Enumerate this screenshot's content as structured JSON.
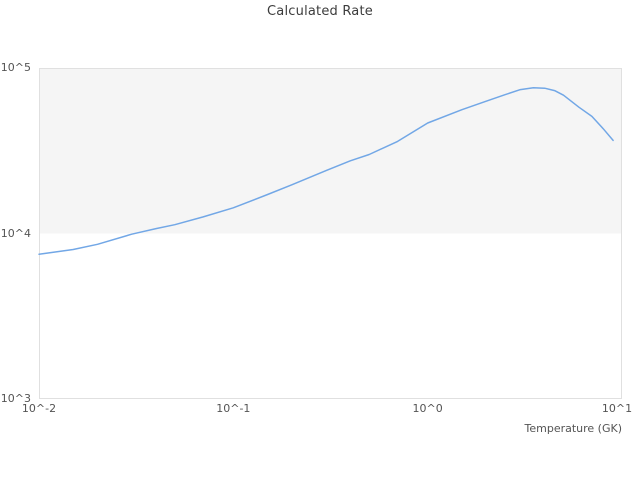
{
  "chart_data": {
    "type": "line",
    "title": "Calculated Rate",
    "xlabel": "Temperature (GK)",
    "ylabel": "",
    "x_scale": "log",
    "y_scale": "log",
    "xlim": [
      0.01,
      10
    ],
    "ylim": [
      1000,
      100000
    ],
    "x_tick_values": [
      0.01,
      0.1,
      1,
      10
    ],
    "x_tick_labels": [
      "10^-2",
      "10^-1",
      "10^0",
      "10^1"
    ],
    "y_tick_values": [
      1000,
      10000,
      100000
    ],
    "y_tick_labels": [
      "10^3",
      "10^4",
      "10^5"
    ],
    "grid": false,
    "legend": "none",
    "band": {
      "from": 10000,
      "to": 100000,
      "color": "#f5f5f5"
    },
    "series": [
      {
        "name": "Calculated Rate",
        "color": "#72a7e6",
        "points": [
          [
            0.01,
            7500
          ],
          [
            0.015,
            8000
          ],
          [
            0.02,
            8600
          ],
          [
            0.03,
            9900
          ],
          [
            0.04,
            10700
          ],
          [
            0.05,
            11300
          ],
          [
            0.07,
            12600
          ],
          [
            0.1,
            14300
          ],
          [
            0.15,
            17200
          ],
          [
            0.2,
            19700
          ],
          [
            0.3,
            24000
          ],
          [
            0.4,
            27500
          ],
          [
            0.5,
            30000
          ],
          [
            0.7,
            36000
          ],
          [
            1.0,
            46500
          ],
          [
            1.5,
            56000
          ],
          [
            2.0,
            63000
          ],
          [
            2.5,
            69000
          ],
          [
            3.0,
            74000
          ],
          [
            3.5,
            76000
          ],
          [
            4.0,
            75500
          ],
          [
            4.5,
            73000
          ],
          [
            5.0,
            68500
          ],
          [
            6.0,
            58000
          ],
          [
            7.0,
            51000
          ],
          [
            8.0,
            43000
          ],
          [
            9.0,
            36500
          ]
        ]
      }
    ]
  },
  "colors": {
    "plot_border": "#e0e0e0",
    "band_fill": "#f5f5f5",
    "line": "#72a7e6",
    "tick_text": "#545454",
    "title_text": "#3c3c3c",
    "background": "#ffffff"
  }
}
